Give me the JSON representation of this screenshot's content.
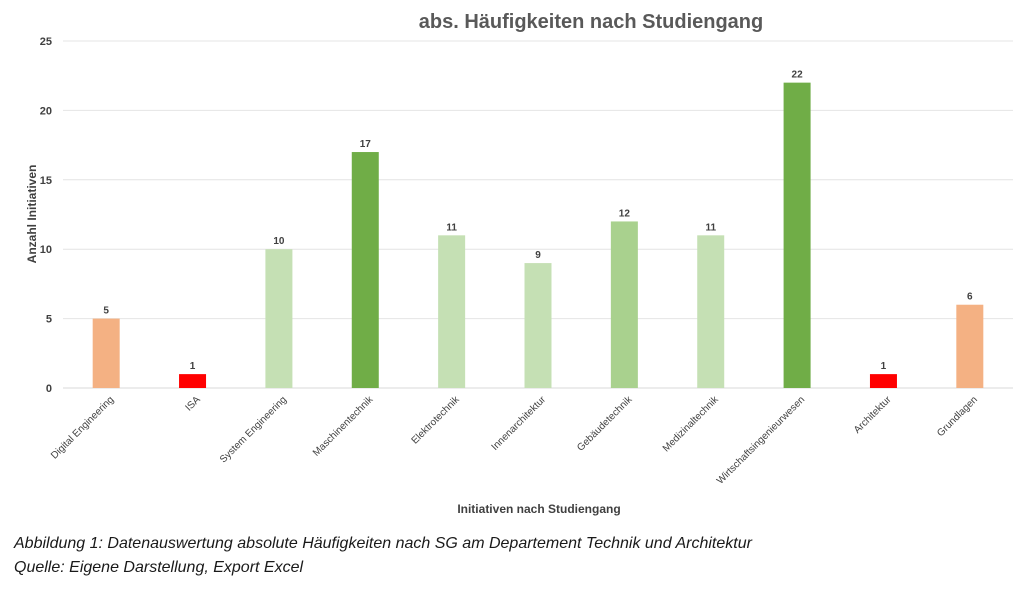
{
  "chart_data": {
    "type": "bar",
    "title": "abs. Häufigkeiten nach Studiengang",
    "xlabel": "Initiativen nach Studiengang",
    "ylabel": "Anzahl Initiativen",
    "ylim": [
      0,
      25
    ],
    "yticks": [
      0,
      5,
      10,
      15,
      20,
      25
    ],
    "grid": true,
    "categories": [
      "Digital Engineering",
      "ISA",
      "System Engineering",
      "Maschinentechnik",
      "Elektrotechnik",
      "Innenarchitektur",
      "Gebäudetechnik",
      "Medizinaltechnik",
      "Wirtschaftsingenieurwesen",
      "Architektur",
      "Grundlagen"
    ],
    "values": [
      5,
      1,
      10,
      17,
      11,
      9,
      12,
      11,
      22,
      1,
      6
    ],
    "colors": [
      "#f4b183",
      "#ff0000",
      "#c5e0b4",
      "#70ad47",
      "#c5e0b4",
      "#c5e0b4",
      "#a9d18e",
      "#c5e0b4",
      "#70ad47",
      "#ff0000",
      "#f4b183"
    ]
  },
  "caption": {
    "line1": "Abbildung 1:  Datenauswertung absolute Häufigkeiten nach SG am Departement Technik und Architektur",
    "line2": "Quelle: Eigene Darstellung, Export Excel"
  }
}
